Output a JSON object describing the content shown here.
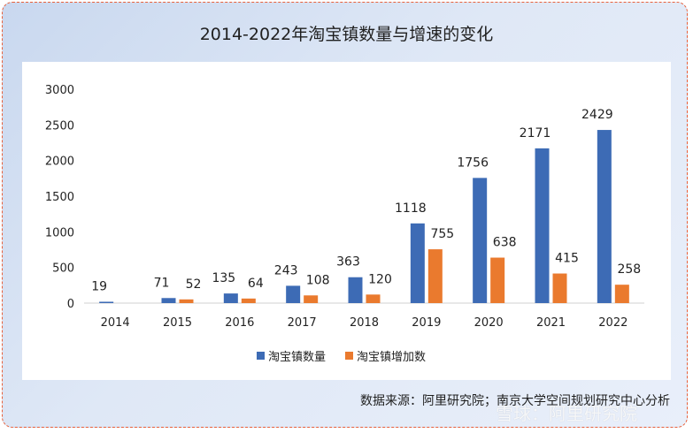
{
  "title": "2014-2022年淘宝镇数量与增速的变化",
  "source": "数据来源：阿里研究院；南京大学空间规划研究中心分析",
  "watermark": "雪球：阿里研究院",
  "colors": {
    "series1": "#3d6bb5",
    "series2": "#ea7a2e"
  },
  "chart_data": {
    "type": "bar",
    "categories": [
      "2014",
      "2015",
      "2016",
      "2017",
      "2018",
      "2019",
      "2020",
      "2021",
      "2022"
    ],
    "series": [
      {
        "name": "淘宝镇数量",
        "values": [
          19,
          71,
          135,
          243,
          363,
          1118,
          1756,
          2171,
          2429
        ],
        "labels": [
          "19",
          "71",
          "135",
          "243",
          "363",
          "1118",
          "1756",
          "2171",
          "2429"
        ]
      },
      {
        "name": "淘宝镇增加数",
        "values": [
          null,
          52,
          64,
          108,
          120,
          755,
          638,
          415,
          258
        ],
        "labels": [
          "",
          "52",
          "64",
          "108",
          "120",
          "755",
          "638",
          "415",
          "258"
        ]
      }
    ],
    "ylim": [
      0,
      3000
    ],
    "yticks": [
      0,
      500,
      1000,
      1500,
      2000,
      2500,
      3000
    ],
    "legend": "bottom",
    "grid": false
  }
}
